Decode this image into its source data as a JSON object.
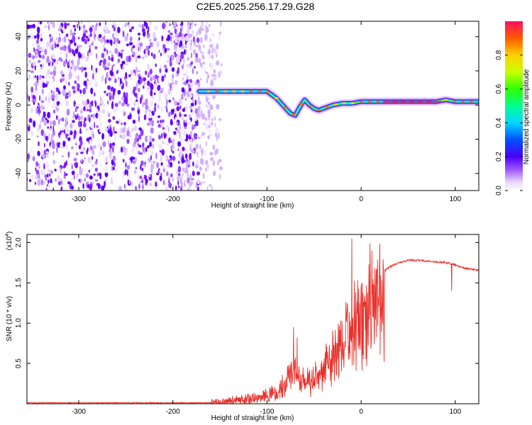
{
  "title": "C2E5.2025.256.17.29.G28",
  "colors": {
    "line": "#e8302a",
    "axis": "#000000",
    "spectro_bg": "#ffffff"
  },
  "chart_data": [
    {
      "type": "heatmap",
      "name": "spectrogram",
      "xlabel": "Height of straight line (km)",
      "ylabel": "Frequency (Hz)",
      "xlim": [
        -355,
        125
      ],
      "ylim": [
        -50,
        49
      ],
      "xticks": [
        -300,
        -200,
        -100,
        0,
        100
      ],
      "xtick_labels": [
        "-300",
        "-200",
        "-100",
        "0",
        "100"
      ],
      "yticks": [
        -40,
        -20,
        0,
        20,
        40
      ],
      "ytick_labels": [
        "-40",
        "-20",
        "0",
        "20",
        "40"
      ],
      "noise_region_x": [
        -355,
        -148
      ],
      "signal_ridge": {
        "x": [
          -172,
          -160,
          -150,
          -140,
          -130,
          -120,
          -110,
          -100,
          -95,
          -90,
          -85,
          -80,
          -75,
          -70,
          -65,
          -60,
          -55,
          -50,
          -45,
          -40,
          -35,
          -30,
          -20,
          -10,
          0,
          10,
          20,
          40,
          60,
          80,
          90,
          100,
          110,
          125
        ],
        "y": [
          8,
          8,
          8,
          8,
          8,
          8,
          8,
          8,
          6,
          4,
          1,
          -2,
          -5,
          -6,
          -1,
          3,
          0,
          -2,
          -3,
          -2,
          -1,
          0,
          1,
          1,
          2,
          2,
          2,
          2,
          2,
          2,
          3,
          2,
          2,
          2
        ]
      },
      "colorbar": {
        "label": "Normalized spectral amplitude",
        "ticks": [
          0.0,
          0.2,
          0.4,
          0.6,
          0.8
        ],
        "tick_labels": [
          "0.0",
          "0.2",
          "0.4",
          "0.6",
          "0.8"
        ],
        "range": [
          0,
          1
        ],
        "colormap": "rainbow"
      }
    },
    {
      "type": "line",
      "name": "snr",
      "xlabel": "Height of straight line (km)",
      "ylabel": "SNR (10 * v/v)",
      "scale_note": "(x10",
      "scale_exp": "4",
      "xlim": [
        -355,
        125
      ],
      "ylim": [
        0,
        2.1
      ],
      "xticks": [
        -300,
        -200,
        -100,
        0,
        100
      ],
      "xtick_labels": [
        "-300",
        "-200",
        "-100",
        "0",
        "100"
      ],
      "yticks": [
        0.5,
        1.0,
        1.5,
        2.0
      ],
      "ytick_labels": [
        "0.5",
        "1.0",
        "1.5",
        "2.0"
      ],
      "envelope_x": [
        -355,
        -200,
        -160,
        -150,
        -130,
        -110,
        -100,
        -90,
        -80,
        -75,
        -70,
        -60,
        -50,
        -40,
        -30,
        -25,
        -20,
        -15,
        -10,
        -5,
        0,
        5,
        10,
        15,
        20,
        30,
        40,
        50,
        60,
        70,
        80,
        90,
        95,
        100,
        105,
        110,
        115,
        125
      ],
      "envelope_y": [
        0.01,
        0.01,
        0.02,
        0.03,
        0.06,
        0.1,
        0.14,
        0.16,
        0.3,
        0.5,
        0.45,
        0.3,
        0.35,
        0.5,
        0.7,
        0.8,
        0.9,
        1.0,
        1.1,
        1.2,
        1.3,
        1.35,
        1.5,
        1.55,
        1.6,
        1.7,
        1.75,
        1.78,
        1.78,
        1.77,
        1.76,
        1.75,
        1.74,
        1.72,
        1.7,
        1.68,
        1.67,
        1.66
      ],
      "spikes": [
        {
          "x": -10,
          "y": 2.05
        },
        {
          "x": 96,
          "y": 1.98
        },
        {
          "x": 96,
          "y": 1.4
        },
        {
          "x": -72,
          "y": 0.95
        },
        {
          "x": -68,
          "y": 0.82
        }
      ]
    }
  ]
}
